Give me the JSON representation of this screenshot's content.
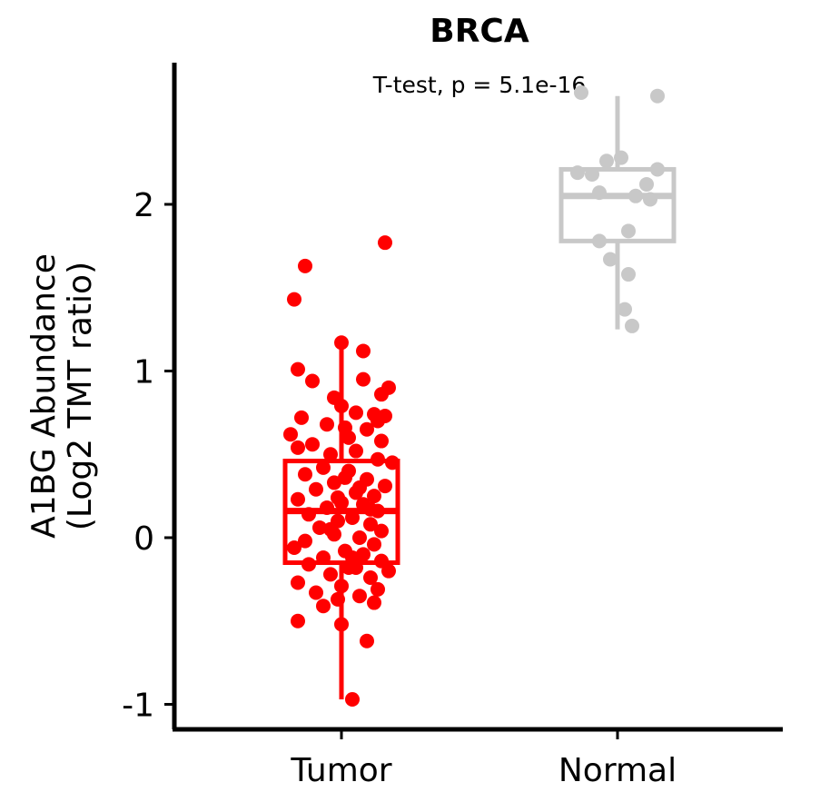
{
  "chart_data": {
    "type": "boxplot",
    "title": "BRCA",
    "annotation": "T-test, p = 5.1e-16",
    "ylabel_line1": "A1BG Abundance",
    "ylabel_line2": "(Log2 TMT ratio)",
    "ylim": [
      -1.15,
      2.85
    ],
    "yticks": [
      "-1",
      "0",
      "1",
      "2"
    ],
    "ytick_values": [
      -1,
      0,
      1,
      2
    ],
    "categories": [
      "Tumor",
      "Normal"
    ],
    "series": [
      {
        "name": "Tumor",
        "color": "#ff0000",
        "box": {
          "whisker_low": -0.97,
          "q1": -0.15,
          "median": 0.16,
          "q3": 0.46,
          "whisker_high": 1.15
        },
        "points": [
          [
            1.77,
            0.12
          ],
          [
            1.63,
            -0.1
          ],
          [
            1.43,
            -0.13
          ],
          [
            1.17,
            0.0
          ],
          [
            1.12,
            0.06
          ],
          [
            1.01,
            -0.12
          ],
          [
            0.95,
            0.06
          ],
          [
            0.94,
            -0.08
          ],
          [
            0.9,
            0.13
          ],
          [
            0.86,
            0.11
          ],
          [
            0.84,
            -0.02
          ],
          [
            0.79,
            0.0
          ],
          [
            0.75,
            0.04
          ],
          [
            0.74,
            0.09
          ],
          [
            0.73,
            0.12
          ],
          [
            0.72,
            -0.11
          ],
          [
            0.7,
            0.1
          ],
          [
            0.68,
            -0.04
          ],
          [
            0.65,
            0.07
          ],
          [
            0.62,
            -0.14
          ],
          [
            0.6,
            0.02
          ],
          [
            0.58,
            0.11
          ],
          [
            0.56,
            -0.08
          ],
          [
            0.54,
            -0.12
          ],
          [
            0.52,
            0.04
          ],
          [
            0.5,
            -0.03
          ],
          [
            0.47,
            0.1
          ],
          [
            0.45,
            0.14
          ],
          [
            0.42,
            -0.05
          ],
          [
            0.4,
            0.02
          ],
          [
            0.38,
            -0.1
          ],
          [
            0.35,
            0.07
          ],
          [
            0.33,
            -0.02
          ],
          [
            0.31,
            0.12
          ],
          [
            0.29,
            -0.07
          ],
          [
            0.27,
            0.04
          ],
          [
            0.25,
            0.09
          ],
          [
            0.23,
            -0.12
          ],
          [
            0.21,
            0.0
          ],
          [
            0.2,
            0.06
          ],
          [
            0.18,
            -0.04
          ],
          [
            0.16,
            0.1
          ],
          [
            0.14,
            -0.09
          ],
          [
            0.12,
            0.03
          ],
          [
            0.1,
            -0.01
          ],
          [
            0.08,
            0.08
          ],
          [
            0.06,
            -0.06
          ],
          [
            0.04,
            0.11
          ],
          [
            0.02,
            -0.02
          ],
          [
            0.0,
            0.05
          ],
          [
            -0.02,
            -0.1
          ],
          [
            -0.04,
            0.09
          ],
          [
            -0.06,
            -0.13
          ],
          [
            -0.08,
            0.01
          ],
          [
            -0.1,
            0.06
          ],
          [
            -0.12,
            -0.05
          ],
          [
            -0.14,
            0.11
          ],
          [
            -0.16,
            -0.09
          ],
          [
            -0.18,
            0.02
          ],
          [
            -0.2,
            0.13
          ],
          [
            -0.22,
            -0.03
          ],
          [
            -0.24,
            0.08
          ],
          [
            -0.27,
            -0.12
          ],
          [
            -0.29,
            0.0
          ],
          [
            -0.31,
            0.1
          ],
          [
            -0.33,
            -0.07
          ],
          [
            -0.35,
            0.05
          ],
          [
            -0.37,
            -0.01
          ],
          [
            -0.39,
            0.09
          ],
          [
            -0.41,
            -0.05
          ],
          [
            -0.5,
            -0.12
          ],
          [
            -0.52,
            0.0
          ],
          [
            -0.62,
            0.07
          ],
          [
            -0.97,
            0.03
          ],
          [
            0.66,
            0.01
          ],
          [
            0.3,
            0.05
          ],
          [
            -0.12,
            0.03
          ],
          [
            0.17,
            0.08
          ],
          [
            0.36,
            0.01
          ],
          [
            -0.18,
            0.04
          ],
          [
            0.05,
            -0.03
          ],
          [
            0.24,
            -0.01
          ]
        ]
      },
      {
        "name": "Normal",
        "color": "#c8c8c8",
        "box": {
          "whisker_low": 1.25,
          "q1": 1.78,
          "median": 2.05,
          "q3": 2.21,
          "whisker_high": 2.65
        },
        "points": [
          [
            2.67,
            -0.1
          ],
          [
            2.65,
            0.11
          ],
          [
            2.28,
            0.01
          ],
          [
            2.26,
            -0.03
          ],
          [
            2.21,
            0.11
          ],
          [
            2.19,
            -0.11
          ],
          [
            2.18,
            -0.07
          ],
          [
            2.12,
            0.08
          ],
          [
            2.07,
            -0.05
          ],
          [
            2.05,
            0.05
          ],
          [
            2.03,
            0.09
          ],
          [
            1.84,
            0.03
          ],
          [
            1.78,
            -0.05
          ],
          [
            1.67,
            -0.02
          ],
          [
            1.58,
            0.03
          ],
          [
            1.37,
            0.02
          ],
          [
            1.27,
            0.04
          ]
        ]
      }
    ]
  }
}
